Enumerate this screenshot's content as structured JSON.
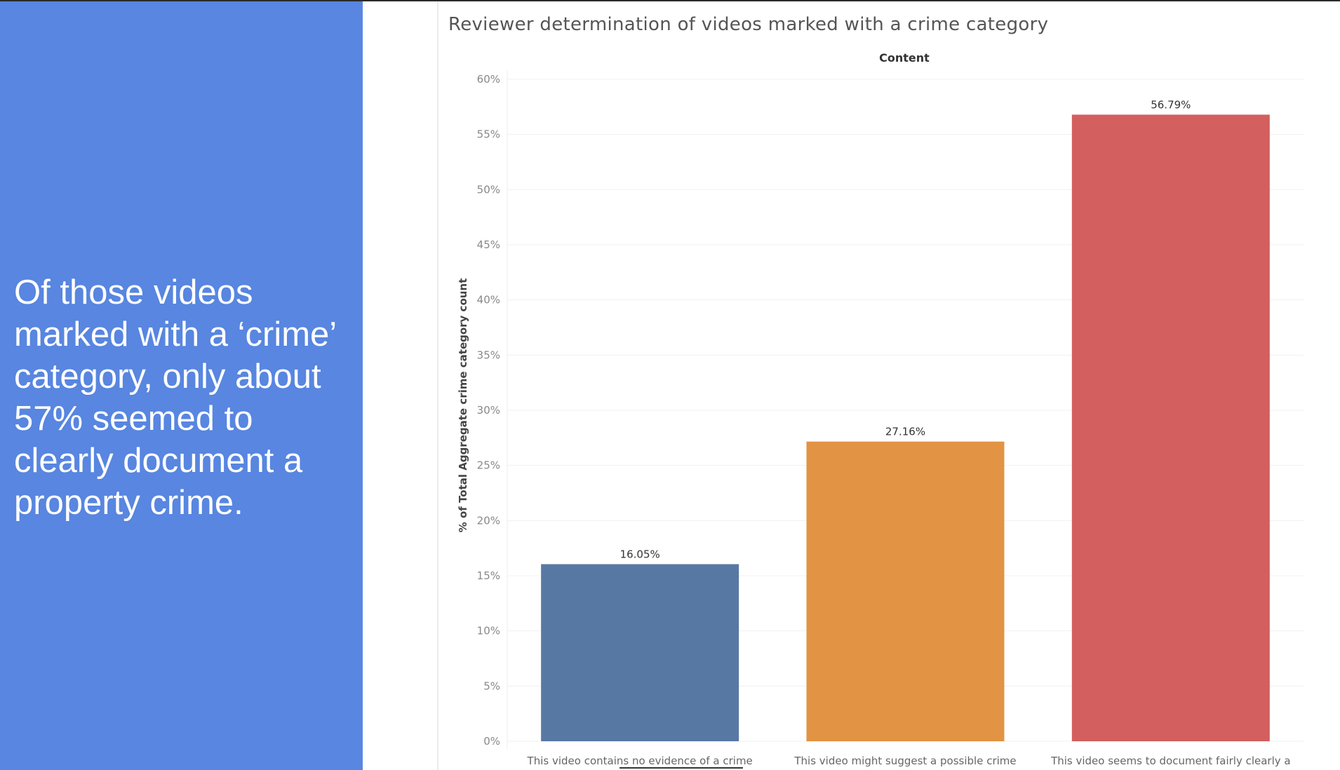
{
  "slide": {
    "message": "Of those videos marked with a ‘crime’ category, only about 57% seemed to clearly document a property crime."
  },
  "chart_data": {
    "type": "bar",
    "title": "Reviewer determination of videos marked with a crime category",
    "header": "Content",
    "ylabel": "% of Total Aggregate crime category count",
    "xlabel": "",
    "ylim": [
      0,
      60
    ],
    "yticks": [
      0,
      5,
      10,
      15,
      20,
      25,
      30,
      35,
      40,
      45,
      50,
      55,
      60
    ],
    "ytick_suffix": "%",
    "grid": true,
    "categories": [
      "This video contains no evidence of a crime",
      "This video might suggest a possible crime",
      "This video seems to document fairly clearly a"
    ],
    "values": [
      16.05,
      27.16,
      56.79
    ],
    "value_labels": [
      "16.05%",
      "27.16%",
      "56.79%"
    ],
    "colors": [
      "#5878a4",
      "#e29343",
      "#d35f5f"
    ]
  }
}
